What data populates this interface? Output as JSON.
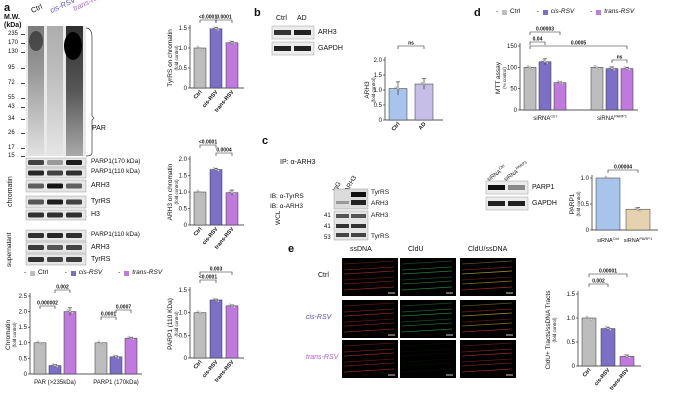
{
  "colors": {
    "ctrl": "#bdbdbd",
    "cis": "#7b6fc6",
    "trans": "#c079dd",
    "ad": "#c6bde8",
    "si_ctrl": "#a8c4ec",
    "si_parp": "#e7d2b0",
    "cldu_green": "#2fa84f",
    "ssdna_red": "#b8352f"
  },
  "panel_labels": {
    "a": "a",
    "b": "b",
    "c": "c",
    "d": "d",
    "e": "e"
  },
  "panel_a": {
    "mw_header": "M.W.\n(kDa)",
    "lane_labels": [
      "Ctrl",
      "cis-RSV",
      "trans-RSV"
    ],
    "mw_markers": [
      "235",
      "170",
      "130",
      "95",
      "72",
      "55",
      "43",
      "34",
      "26",
      "17",
      "15"
    ],
    "par_label": "PAR",
    "chromatin_label": "chromatin",
    "supernatant_label": "supernatant",
    "chromatin_bands": [
      "PARP1(170 kDa)",
      "PARP1(110 kDa)",
      "ARH3",
      "TyrRS",
      "H3"
    ],
    "supernatant_bands": [
      "PARP1(110 kDa)",
      "ARH3",
      "TyrRS"
    ],
    "legend": [
      "Ctrl",
      "cis-RSV",
      "trans-RSV"
    ]
  },
  "chart_data": [
    {
      "id": "tyrrs_chromatin",
      "type": "bar",
      "categories": [
        "Ctrl",
        "cis-RSV",
        "trans-RSV"
      ],
      "values": [
        1.0,
        1.48,
        1.13
      ],
      "errors": [
        0,
        0.03,
        0.04
      ],
      "ylabel": "TyrRS on chromatin",
      "ylabel_sub": "(fold control)",
      "ylim": [
        0,
        1.5
      ],
      "yticks": [
        "0",
        "0.5",
        "1.0",
        "1.5"
      ],
      "sig": [
        {
          "a": 0,
          "b": 1,
          "label": "<0.0001"
        },
        {
          "a": 1,
          "b": 2,
          "label": "0.0001"
        }
      ]
    },
    {
      "id": "arh3_chromatin",
      "type": "bar",
      "categories": [
        "Ctrl",
        "cis-RSV",
        "trans-RSV"
      ],
      "values": [
        1.0,
        1.68,
        0.98
      ],
      "errors": [
        0,
        0.04,
        0.08
      ],
      "ylabel": "ARH3 on chromatin",
      "ylabel_sub": "(fold control)",
      "ylim": [
        0,
        2.0
      ],
      "yticks": [
        "0",
        "0.5",
        "1.0",
        "1.5",
        "2.0"
      ],
      "sig": [
        {
          "a": 0,
          "b": 1,
          "label": "<0.0001"
        },
        {
          "a": 1,
          "b": 2,
          "label": "0.0004"
        }
      ]
    },
    {
      "id": "parp1_110",
      "type": "bar",
      "categories": [
        "Ctrl",
        "cis-RSV",
        "trans-RSV"
      ],
      "values": [
        1.0,
        1.28,
        1.15
      ],
      "errors": [
        0,
        0.02,
        0.02
      ],
      "ylabel": "PARP1 (110 KDa)",
      "ylabel_sub": "(fold control)",
      "ylim": [
        0,
        1.5
      ],
      "yticks": [
        "0",
        "0.5",
        "1.0",
        "1.5"
      ],
      "sig": [
        {
          "a": 0,
          "b": 1,
          "label": "<0.0001"
        },
        {
          "a": 0,
          "b": 2,
          "label": "0.003"
        }
      ]
    },
    {
      "id": "chromatin_par_parp1",
      "type": "bar",
      "groups": [
        "PAR (>235kDa)",
        "PARP1 (170kDa)"
      ],
      "categories": [
        "Ctrl",
        "cis-RSV",
        "trans-RSV"
      ],
      "series": [
        {
          "group": "PAR (>235kDa)",
          "values": [
            1.0,
            0.27,
            2.0
          ],
          "errors": [
            0,
            0.03,
            0.12
          ]
        },
        {
          "group": "PARP1 (170kDa)",
          "values": [
            1.0,
            0.55,
            1.15
          ],
          "errors": [
            0,
            0.03,
            0.03
          ]
        }
      ],
      "ylabel": "Chromatin",
      "ylabel_sub": "(fold control)",
      "ylim": [
        0,
        2.5
      ],
      "yticks": [
        "0",
        "0.5",
        "1.0",
        "1.5",
        "2.0",
        "2.5"
      ],
      "sig": [
        {
          "g": 0,
          "a": 0,
          "b": 1,
          "label": "0.000002"
        },
        {
          "g": 0,
          "a": 1,
          "b": 2,
          "label": "0.002"
        },
        {
          "g": 1,
          "a": 0,
          "b": 1,
          "label": "0.0001"
        },
        {
          "g": 1,
          "a": 1,
          "b": 2,
          "label": "0.0007"
        }
      ]
    },
    {
      "id": "arh3_ad",
      "type": "bar",
      "categories": [
        "Ctrl",
        "AD"
      ],
      "values": [
        1.05,
        1.2
      ],
      "errors": [
        0.22,
        0.18
      ],
      "ylabel": "ARH3",
      "ylabel_sub": "(fold control)",
      "ylim": [
        0,
        2.0
      ],
      "yticks": [
        "0",
        "0.5",
        "1.0",
        "1.5",
        "2.0"
      ],
      "sig": [
        {
          "a": 0,
          "b": 1,
          "label": "ns"
        }
      ]
    },
    {
      "id": "mtt",
      "type": "bar",
      "groups": [
        "siRNACtrl",
        "siRNAPARP1"
      ],
      "categories": [
        "Ctrl",
        "cis-RSV",
        "trans-RSV"
      ],
      "series": [
        {
          "group": "siRNACtrl",
          "values": [
            100,
            113,
            64
          ],
          "errors": [
            0,
            7,
            2
          ]
        },
        {
          "group": "siRNAPARP1",
          "values": [
            100,
            97,
            97
          ],
          "errors": [
            0,
            4,
            3
          ]
        }
      ],
      "ylabel": "MTT assay",
      "ylabel_sub": "(% control)",
      "ylim": [
        0,
        150
      ],
      "yticks": [
        "0",
        "50",
        "100",
        "150"
      ],
      "sig": [
        {
          "g": 0,
          "a": 0,
          "b": 1,
          "label": "0.04"
        },
        {
          "g": 0,
          "a": 0,
          "b": 2,
          "label": "0.00003"
        },
        {
          "g": 1,
          "a": 0,
          "b": 1,
          "label": "0.0005",
          "cross": true
        },
        {
          "g": 1,
          "a": 1,
          "b": 2,
          "label": "ns"
        }
      ]
    },
    {
      "id": "parp1_sirna",
      "type": "bar",
      "categories": [
        "siRNACtrl",
        "siRNAPARP1"
      ],
      "values": [
        1.0,
        0.4
      ],
      "errors": [
        0,
        0.03
      ],
      "ylabel": "PARP1",
      "ylabel_sub": "(fold control)",
      "ylim": [
        0,
        1.0
      ],
      "yticks": [
        "0",
        "0.5",
        "1.0"
      ],
      "sig": [
        {
          "a": 0,
          "b": 1,
          "label": "0.00004"
        }
      ]
    },
    {
      "id": "cldu_tracts",
      "type": "bar",
      "categories": [
        "Ctrl",
        "cis-RSV",
        "trans-RSV"
      ],
      "values": [
        1.0,
        0.78,
        0.2
      ],
      "errors": [
        0,
        0.03,
        0.03
      ],
      "ylabel": "CldU+ Tracts/ssDNA Tracts",
      "ylabel_sub": "(fold control)",
      "ylim": [
        0,
        1.5
      ],
      "yticks": [
        "0",
        "0.5",
        "1.0",
        "1.5"
      ],
      "sig": [
        {
          "a": 0,
          "b": 1,
          "label": "0.002"
        },
        {
          "a": 0,
          "b": 2,
          "label": "0.00001"
        }
      ]
    }
  ],
  "panel_b": {
    "lanes": [
      "Ctrl",
      "AD"
    ],
    "bands": [
      "ARH3",
      "GAPDH"
    ]
  },
  "panel_c": {
    "ip_label": "IP: α-ARH3",
    "lanes": [
      "IgG",
      "ARH3"
    ],
    "ib_labels": [
      "IB: α-TyrRS",
      "IB: α-ARH3"
    ],
    "wcl_label": "WCL",
    "mw": [
      "41",
      "41",
      "53"
    ],
    "band_labels": [
      "TyrRS",
      "ARH3",
      "ARH3",
      "TyrRS"
    ]
  },
  "panel_d": {
    "legend": [
      "Ctrl",
      "cis-RSV",
      "trans-RSV"
    ],
    "group_labels": [
      "siRNA",
      "siRNA"
    ],
    "group_sups": [
      "Ctrl",
      "PARP1"
    ],
    "blot_lanes": [
      "siRNA",
      "siRNA"
    ],
    "blot_lane_sups": [
      "Ctrl",
      "PARP1"
    ],
    "bands": [
      "PARP1",
      "GAPDH"
    ]
  },
  "panel_e": {
    "columns": [
      "ssDNA",
      "CldU",
      "CldU/ssDNA"
    ],
    "rows": [
      "Ctrl",
      "cis-RSV",
      "trans-RSV"
    ]
  }
}
